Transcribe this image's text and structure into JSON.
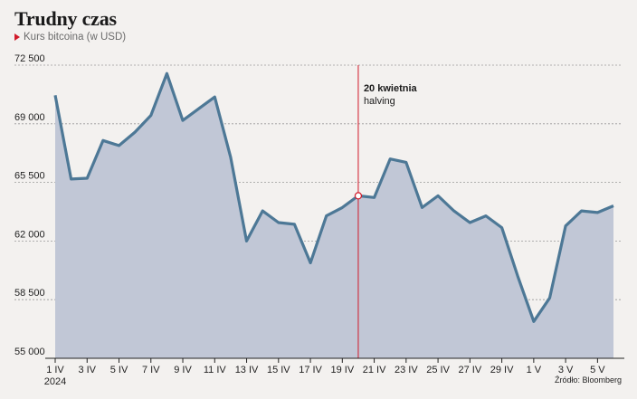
{
  "header": {
    "title": "Trudny czas",
    "subtitle": "Kurs bitcoina (w USD)"
  },
  "source": "Źródło: Bloomberg",
  "colors": {
    "background": "#f3f1ef",
    "line": "#4d7896",
    "area": "#c1c7d6",
    "event_line": "#d11a2a",
    "grid": "#9a9a9a"
  },
  "chart_data": {
    "type": "area",
    "title": "Trudny czas",
    "subtitle": "Kurs bitcoina (w USD)",
    "xlabel": "",
    "ylabel": "",
    "ylim": [
      55000,
      72500
    ],
    "yticks": [
      55000,
      58500,
      62000,
      65500,
      69000,
      72500
    ],
    "ytick_labels": [
      "55 000",
      "58 500",
      "62 000",
      "65 500",
      "69 000",
      "72 500"
    ],
    "grid": true,
    "x": [
      "1 IV",
      "2 IV",
      "3 IV",
      "4 IV",
      "5 IV",
      "6 IV",
      "7 IV",
      "8 IV",
      "9 IV",
      "10 IV",
      "11 IV",
      "12 IV",
      "13 IV",
      "14 IV",
      "15 IV",
      "16 IV",
      "17 IV",
      "18 IV",
      "19 IV",
      "20 IV",
      "21 IV",
      "22 IV",
      "23 IV",
      "24 IV",
      "25 IV",
      "26 IV",
      "27 IV",
      "28 IV",
      "29 IV",
      "30 IV",
      "1 V",
      "2 V",
      "3 V",
      "4 V",
      "5 V",
      "6 V"
    ],
    "values": [
      70700,
      65700,
      65750,
      68000,
      67700,
      68500,
      69500,
      72000,
      69200,
      69900,
      70600,
      67000,
      62000,
      63800,
      63100,
      63000,
      60700,
      63500,
      64000,
      64700,
      64600,
      66900,
      66700,
      64000,
      64700,
      63800,
      63100,
      63500,
      62800,
      59900,
      57200,
      58600,
      62900,
      63800,
      63700,
      64100
    ],
    "xtick_labels": [
      "1 IV",
      "3 IV",
      "5 IV",
      "7 IV",
      "9 IV",
      "11 IV",
      "13 IV",
      "15 IV",
      "17 IV",
      "19 IV",
      "21 IV",
      "23 IV",
      "25 IV",
      "27 IV",
      "29 IV",
      "1 V",
      "3 V",
      "5 V"
    ],
    "xtick_indices": [
      0,
      2,
      4,
      6,
      8,
      10,
      12,
      14,
      16,
      18,
      20,
      22,
      24,
      26,
      28,
      30,
      32,
      34
    ],
    "year_label": "2024",
    "annotation": {
      "index": 19,
      "date_label": "20 kwietnia",
      "label": "halving"
    }
  }
}
